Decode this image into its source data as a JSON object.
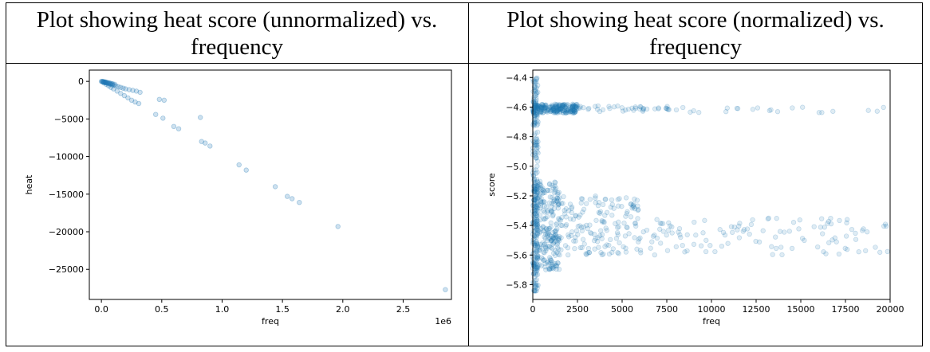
{
  "captions": {
    "left": "Plot showing heat score (unnormalized) vs. frequency",
    "right": "Plot showing heat score (normalized) vs. frequency"
  },
  "chart_data": [
    {
      "type": "scatter",
      "xlabel": "freq",
      "ylabel": "heat",
      "x_offset_label": "1e6",
      "xlim": [
        -100000,
        2900000
      ],
      "ylim": [
        -29000,
        1500
      ],
      "x_ticks": [
        0,
        500000,
        1000000,
        1500000,
        2000000,
        2500000
      ],
      "x_tick_labels": [
        "0.0",
        "0.5",
        "1.0",
        "1.5",
        "2.0",
        "2.5"
      ],
      "y_ticks": [
        0,
        -5000,
        -10000,
        -15000,
        -20000,
        -25000
      ],
      "y_tick_labels": [
        "0",
        "−5000",
        "−10000",
        "−15000",
        "−20000",
        "−25000"
      ],
      "color": "#1f77b4",
      "series": [
        {
          "points": [
            [
              0,
              0
            ],
            [
              10000,
              -50
            ],
            [
              20000,
              -100
            ],
            [
              30000,
              -150
            ],
            [
              40000,
              -200
            ],
            [
              50000,
              -250
            ],
            [
              60000,
              -300
            ],
            [
              70000,
              -350
            ],
            [
              80000,
              -400
            ],
            [
              90000,
              -450
            ],
            [
              100000,
              -500
            ],
            [
              120000,
              -600
            ],
            [
              140000,
              -700
            ],
            [
              160000,
              -800
            ],
            [
              180000,
              -900
            ],
            [
              200000,
              -1000
            ],
            [
              230000,
              -1100
            ],
            [
              260000,
              -1200
            ],
            [
              290000,
              -1300
            ],
            [
              320000,
              -1450
            ],
            [
              20000,
              -200
            ],
            [
              40000,
              -400
            ],
            [
              60000,
              -600
            ],
            [
              80000,
              -800
            ],
            [
              100000,
              -1000
            ],
            [
              130000,
              -1300
            ],
            [
              160000,
              -1600
            ],
            [
              190000,
              -1900
            ],
            [
              220000,
              -2200
            ],
            [
              250000,
              -2500
            ],
            [
              280000,
              -2750
            ],
            [
              310000,
              -2950
            ],
            [
              15000,
              -20
            ],
            [
              25000,
              -60
            ],
            [
              35000,
              -90
            ],
            [
              45000,
              -130
            ],
            [
              55000,
              -170
            ],
            [
              65000,
              -210
            ],
            [
              75000,
              -260
            ],
            [
              85000,
              -290
            ],
            [
              95000,
              -330
            ],
            [
              110000,
              -380
            ],
            [
              5000,
              -10
            ],
            [
              12000,
              -30
            ],
            [
              18000,
              -70
            ],
            [
              28000,
              -110
            ],
            [
              38000,
              -160
            ],
            [
              480000,
              -2400
            ],
            [
              520000,
              -2500
            ],
            [
              450000,
              -4400
            ],
            [
              510000,
              -4900
            ],
            [
              600000,
              -6000
            ],
            [
              640000,
              -6300
            ],
            [
              820000,
              -4800
            ],
            [
              830000,
              -8000
            ],
            [
              860000,
              -8200
            ],
            [
              900000,
              -8600
            ],
            [
              1140000,
              -11100
            ],
            [
              1200000,
              -11800
            ],
            [
              1440000,
              -14000
            ],
            [
              1540000,
              -15300
            ],
            [
              1580000,
              -15600
            ],
            [
              1640000,
              -16100
            ],
            [
              1960000,
              -19300
            ],
            [
              2850000,
              -27700
            ]
          ]
        }
      ]
    },
    {
      "type": "scatter",
      "xlabel": "freq",
      "ylabel": "score",
      "xlim": [
        0,
        20000
      ],
      "ylim": [
        -5.9,
        -4.35
      ],
      "x_ticks": [
        0,
        2500,
        5000,
        7500,
        10000,
        12500,
        15000,
        17500,
        20000
      ],
      "x_tick_labels": [
        "0",
        "2500",
        "5000",
        "7500",
        "10000",
        "12500",
        "15000",
        "17500",
        "20000"
      ],
      "y_ticks": [
        -4.4,
        -4.6,
        -4.8,
        -5.0,
        -5.2,
        -5.4,
        -5.6,
        -5.8
      ],
      "y_tick_labels": [
        "−4.4",
        "−4.6",
        "−4.8",
        "−5.0",
        "−5.2",
        "−5.4",
        "−5.6",
        "−5.8"
      ],
      "color": "#1f77b4",
      "series": [
        {
          "clusters": [
            {
              "x_range": [
                0,
                300
              ],
              "y_range": [
                -5.85,
                -4.4
              ],
              "count": 260
            },
            {
              "x_range": [
                0,
                2500
              ],
              "y_range": [
                -4.64,
                -4.58
              ],
              "count": 220
            },
            {
              "x_range": [
                2500,
                8000
              ],
              "y_range": [
                -4.63,
                -4.59
              ],
              "count": 40
            },
            {
              "x_range": [
                8000,
                20000
              ],
              "y_range": [
                -4.64,
                -4.6
              ],
              "count": 22
            },
            {
              "x_range": [
                0,
                1500
              ],
              "y_range": [
                -5.7,
                -5.1
              ],
              "count": 260
            },
            {
              "x_range": [
                1500,
                6000
              ],
              "y_range": [
                -5.6,
                -5.2
              ],
              "count": 160
            },
            {
              "x_range": [
                6000,
                20000
              ],
              "y_range": [
                -5.6,
                -5.35
              ],
              "count": 120
            }
          ]
        }
      ]
    }
  ]
}
